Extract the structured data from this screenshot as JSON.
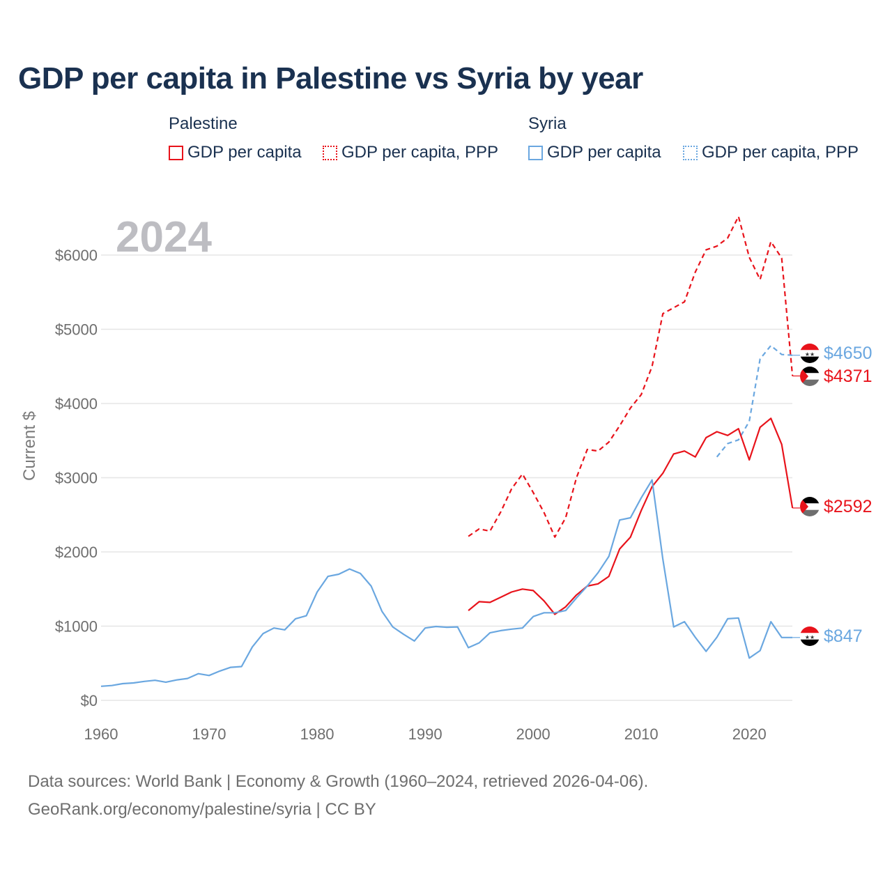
{
  "title": "GDP per capita in Palestine vs Syria by year",
  "year_watermark": "2024",
  "legend": {
    "groups": [
      {
        "name": "Palestine",
        "items": [
          "GDP per capita",
          "GDP per capita, PPP"
        ]
      },
      {
        "name": "Syria",
        "items": [
          "GDP per capita",
          "GDP per capita, PPP"
        ]
      }
    ]
  },
  "colors": {
    "palestine": "#e8131b",
    "syria": "#6aa7e0",
    "grid": "#e6e6e6",
    "title": "#1a3150"
  },
  "chart_data": {
    "type": "line",
    "title": "GDP per capita in Palestine vs Syria by year",
    "xlabel": "",
    "ylabel": "Current $",
    "xlim": [
      1960,
      2024
    ],
    "ylim": [
      0,
      6500
    ],
    "x_ticks": [
      1960,
      1970,
      1980,
      1990,
      2000,
      2010,
      2020
    ],
    "x_tick_labels": [
      "1960",
      "1970",
      "1980",
      "1990",
      "2000",
      "2010",
      "2020"
    ],
    "y_ticks": [
      0,
      1000,
      2000,
      3000,
      4000,
      5000,
      6000
    ],
    "y_tick_labels": [
      "$0",
      "$1000",
      "$2000",
      "$3000",
      "$4000",
      "$5000",
      "$6000"
    ],
    "series": [
      {
        "name": "Palestine GDP per capita, PPP",
        "country": "palestine",
        "style": "dashed",
        "end_label": "$4371",
        "end_value": 4371,
        "points": [
          [
            1994,
            2210
          ],
          [
            1995,
            2310
          ],
          [
            1996,
            2280
          ],
          [
            1997,
            2540
          ],
          [
            1998,
            2850
          ],
          [
            1999,
            3050
          ],
          [
            2000,
            2800
          ],
          [
            2001,
            2530
          ],
          [
            2002,
            2200
          ],
          [
            2003,
            2460
          ],
          [
            2004,
            3000
          ],
          [
            2005,
            3380
          ],
          [
            2006,
            3360
          ],
          [
            2007,
            3480
          ],
          [
            2008,
            3700
          ],
          [
            2009,
            3940
          ],
          [
            2010,
            4120
          ],
          [
            2011,
            4500
          ],
          [
            2012,
            5210
          ],
          [
            2013,
            5290
          ],
          [
            2014,
            5370
          ],
          [
            2015,
            5770
          ],
          [
            2016,
            6070
          ],
          [
            2017,
            6120
          ],
          [
            2018,
            6230
          ],
          [
            2019,
            6520
          ],
          [
            2020,
            5970
          ],
          [
            2021,
            5670
          ],
          [
            2022,
            6180
          ],
          [
            2023,
            5960
          ],
          [
            2024,
            4371
          ]
        ]
      },
      {
        "name": "Syria GDP per capita, PPP",
        "country": "syria",
        "style": "dashed",
        "end_label": "$4650",
        "end_value": 4650,
        "points": [
          [
            2017,
            3280
          ],
          [
            2018,
            3460
          ],
          [
            2019,
            3510
          ],
          [
            2020,
            3760
          ],
          [
            2021,
            4600
          ],
          [
            2022,
            4780
          ],
          [
            2023,
            4660
          ],
          [
            2024,
            4650
          ]
        ]
      },
      {
        "name": "Palestine GDP per capita",
        "country": "palestine",
        "style": "solid",
        "end_label": "$2592",
        "end_value": 2592,
        "points": [
          [
            1994,
            1210
          ],
          [
            1995,
            1330
          ],
          [
            1996,
            1320
          ],
          [
            1997,
            1390
          ],
          [
            1998,
            1460
          ],
          [
            1999,
            1500
          ],
          [
            2000,
            1480
          ],
          [
            2001,
            1340
          ],
          [
            2002,
            1160
          ],
          [
            2003,
            1260
          ],
          [
            2004,
            1420
          ],
          [
            2005,
            1540
          ],
          [
            2006,
            1570
          ],
          [
            2007,
            1670
          ],
          [
            2008,
            2040
          ],
          [
            2009,
            2200
          ],
          [
            2010,
            2560
          ],
          [
            2011,
            2880
          ],
          [
            2012,
            3060
          ],
          [
            2013,
            3320
          ],
          [
            2014,
            3360
          ],
          [
            2015,
            3280
          ],
          [
            2016,
            3540
          ],
          [
            2017,
            3620
          ],
          [
            2018,
            3570
          ],
          [
            2019,
            3660
          ],
          [
            2020,
            3240
          ],
          [
            2021,
            3680
          ],
          [
            2022,
            3800
          ],
          [
            2023,
            3450
          ],
          [
            2024,
            2592
          ]
        ]
      },
      {
        "name": "Syria GDP per capita",
        "country": "syria",
        "style": "solid",
        "end_label": "$847",
        "end_value": 847,
        "points": [
          [
            1960,
            190
          ],
          [
            1961,
            200
          ],
          [
            1962,
            225
          ],
          [
            1963,
            235
          ],
          [
            1964,
            255
          ],
          [
            1965,
            270
          ],
          [
            1966,
            245
          ],
          [
            1967,
            275
          ],
          [
            1968,
            295
          ],
          [
            1969,
            360
          ],
          [
            1970,
            335
          ],
          [
            1971,
            395
          ],
          [
            1972,
            445
          ],
          [
            1973,
            455
          ],
          [
            1974,
            720
          ],
          [
            1975,
            900
          ],
          [
            1976,
            975
          ],
          [
            1977,
            950
          ],
          [
            1978,
            1100
          ],
          [
            1979,
            1140
          ],
          [
            1980,
            1460
          ],
          [
            1981,
            1670
          ],
          [
            1982,
            1700
          ],
          [
            1983,
            1770
          ],
          [
            1984,
            1710
          ],
          [
            1985,
            1540
          ],
          [
            1986,
            1200
          ],
          [
            1987,
            990
          ],
          [
            1988,
            890
          ],
          [
            1989,
            800
          ],
          [
            1990,
            975
          ],
          [
            1991,
            995
          ],
          [
            1992,
            985
          ],
          [
            1993,
            990
          ],
          [
            1994,
            710
          ],
          [
            1995,
            775
          ],
          [
            1996,
            910
          ],
          [
            1997,
            940
          ],
          [
            1998,
            960
          ],
          [
            1999,
            975
          ],
          [
            2000,
            1130
          ],
          [
            2001,
            1180
          ],
          [
            2002,
            1180
          ],
          [
            2003,
            1210
          ],
          [
            2004,
            1380
          ],
          [
            2005,
            1540
          ],
          [
            2006,
            1720
          ],
          [
            2007,
            1940
          ],
          [
            2008,
            2430
          ],
          [
            2009,
            2460
          ],
          [
            2010,
            2730
          ],
          [
            2011,
            2970
          ],
          [
            2012,
            1900
          ],
          [
            2013,
            990
          ],
          [
            2014,
            1060
          ],
          [
            2015,
            850
          ],
          [
            2016,
            660
          ],
          [
            2017,
            850
          ],
          [
            2018,
            1100
          ],
          [
            2019,
            1110
          ],
          [
            2020,
            570
          ],
          [
            2021,
            670
          ],
          [
            2022,
            1060
          ],
          [
            2023,
            847
          ],
          [
            2024,
            847
          ]
        ]
      }
    ]
  },
  "source": {
    "line1": "Data sources: World Bank | Economy & Growth (1960–2024, retrieved 2026-04-06).",
    "line2": "GeoRank.org/economy/palestine/syria | CC BY"
  }
}
